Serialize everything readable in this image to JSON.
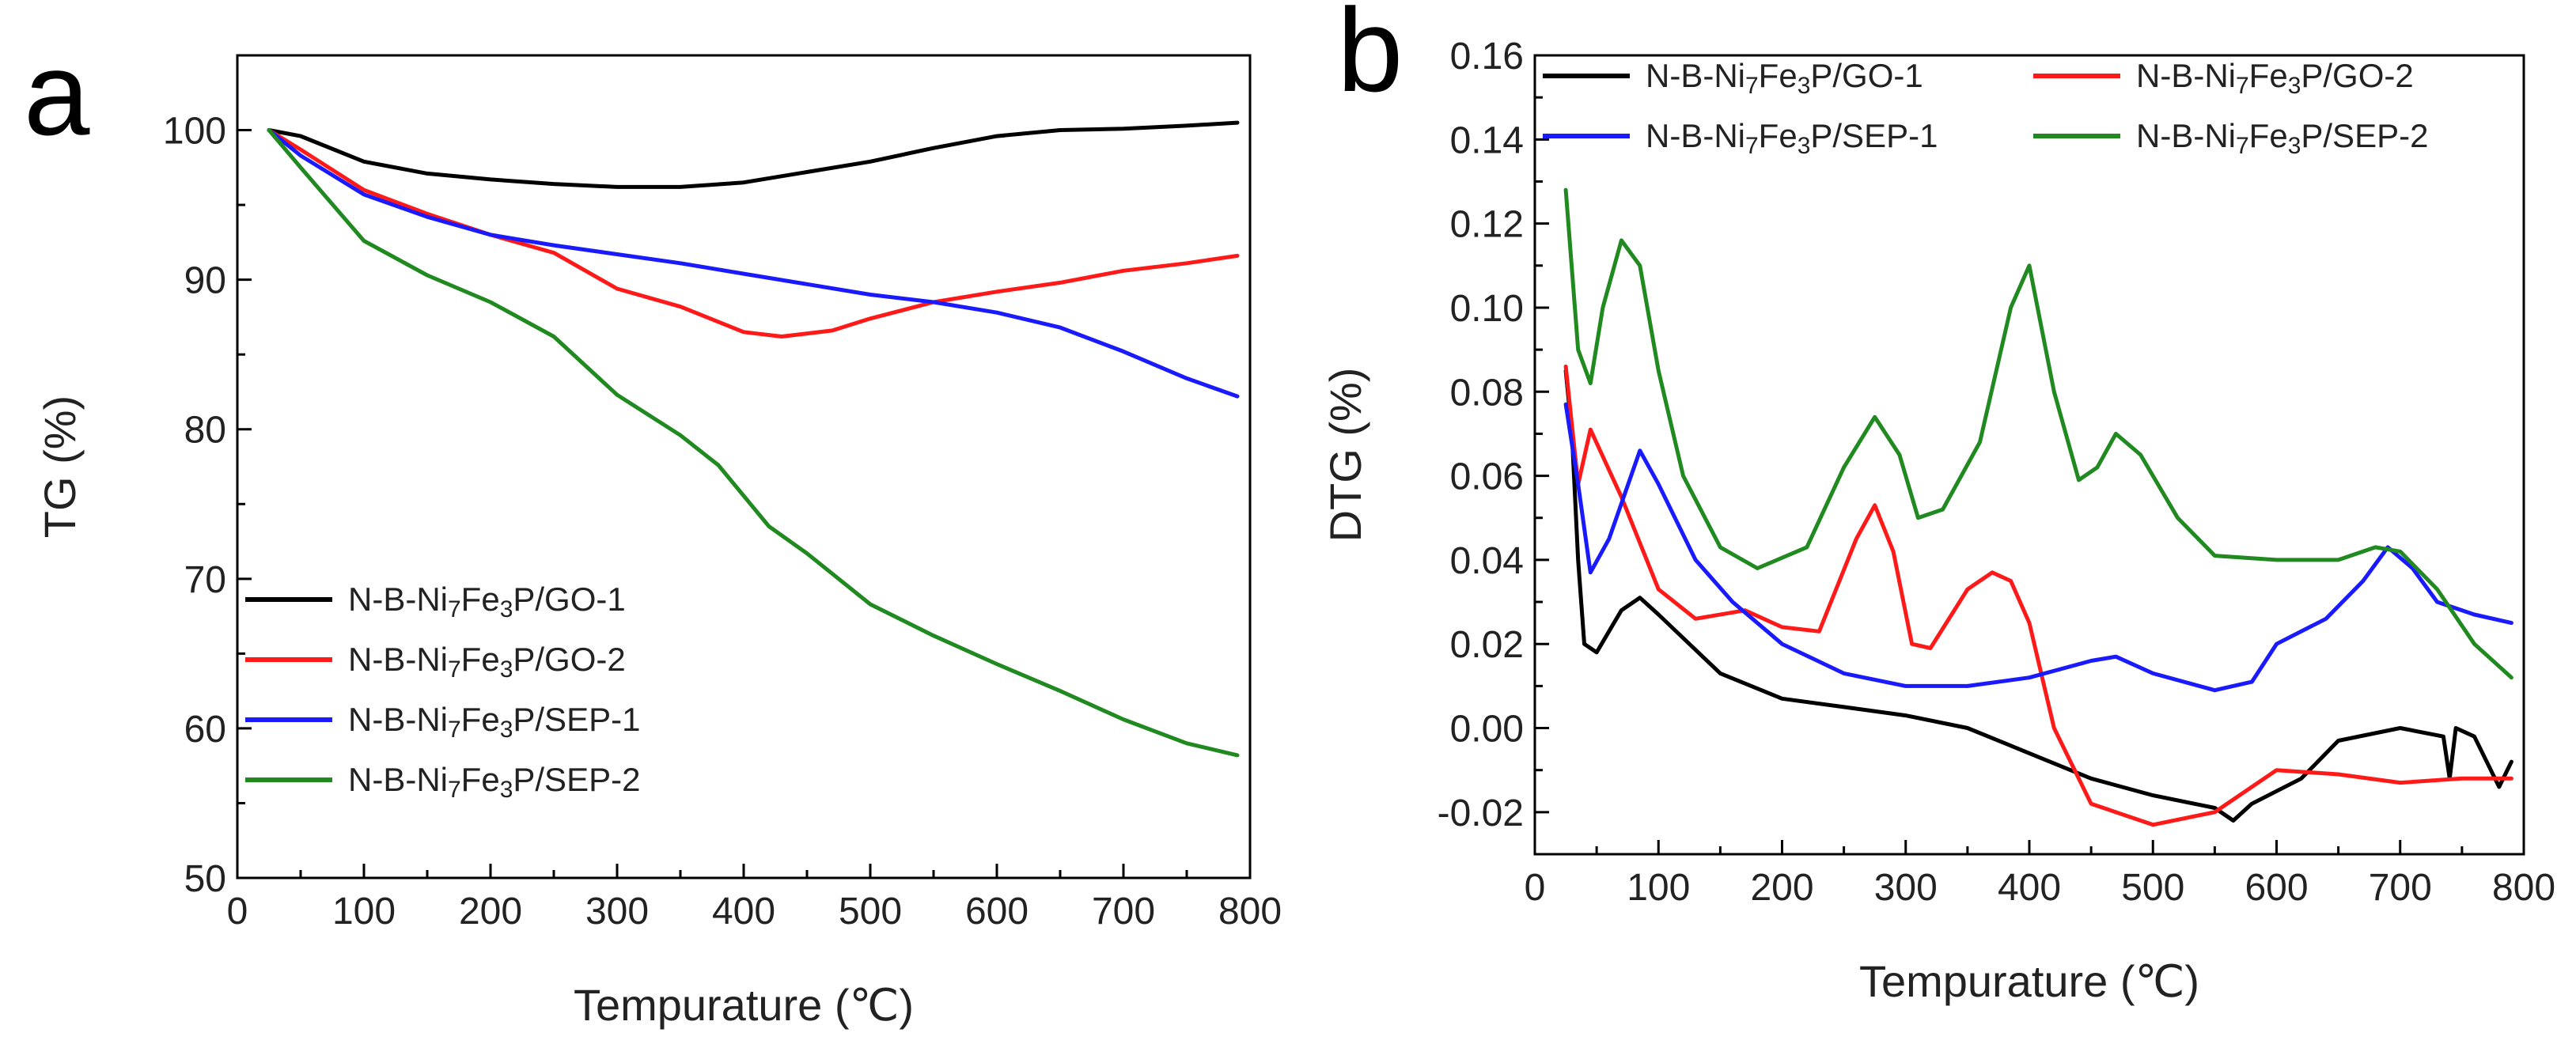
{
  "figure": {
    "panel_labels": [
      "a",
      "b"
    ]
  },
  "colors": {
    "GO-1": "#000000",
    "GO-2": "#ff1a1a",
    "SEP-1": "#1a1aff",
    "SEP-2": "#208a20"
  },
  "chart_data": [
    {
      "id": "a",
      "type": "line",
      "title": "",
      "xlabel": "Tempurature (℃)",
      "ylabel": "TG (%)",
      "xlim": [
        0,
        800
      ],
      "ylim": [
        50,
        105
      ],
      "xticks": [
        0,
        100,
        200,
        300,
        400,
        500,
        600,
        700,
        800
      ],
      "yticks": [
        50,
        60,
        70,
        80,
        90,
        100
      ],
      "legend": "bottom-left",
      "series": [
        {
          "key": "GO-1",
          "label_parts": [
            "N-B-Ni",
            "7",
            "Fe",
            "3",
            "P/GO-1"
          ],
          "color": "#000000",
          "points": [
            [
              25,
              100
            ],
            [
              50,
              99.6
            ],
            [
              100,
              97.9
            ],
            [
              150,
              97.1
            ],
            [
              200,
              96.7
            ],
            [
              250,
              96.4
            ],
            [
              300,
              96.2
            ],
            [
              350,
              96.2
            ],
            [
              400,
              96.5
            ],
            [
              450,
              97.2
            ],
            [
              500,
              97.9
            ],
            [
              550,
              98.8
            ],
            [
              600,
              99.6
            ],
            [
              650,
              100.0
            ],
            [
              700,
              100.1
            ],
            [
              750,
              100.3
            ],
            [
              790,
              100.5
            ]
          ]
        },
        {
          "key": "GO-2",
          "label_parts": [
            "N-B-Ni",
            "7",
            "Fe",
            "3",
            "P/GO-2"
          ],
          "color": "#ff1a1a",
          "points": [
            [
              25,
              100
            ],
            [
              50,
              98.7
            ],
            [
              100,
              96
            ],
            [
              150,
              94.4
            ],
            [
              200,
              93
            ],
            [
              250,
              91.8
            ],
            [
              300,
              89.4
            ],
            [
              350,
              88.2
            ],
            [
              400,
              86.5
            ],
            [
              430,
              86.2
            ],
            [
              470,
              86.6
            ],
            [
              500,
              87.4
            ],
            [
              550,
              88.5
            ],
            [
              600,
              89.2
            ],
            [
              650,
              89.8
            ],
            [
              700,
              90.6
            ],
            [
              750,
              91.1
            ],
            [
              790,
              91.6
            ]
          ]
        },
        {
          "key": "SEP-1",
          "label_parts": [
            "N-B-Ni",
            "7",
            "Fe",
            "3",
            "P/SEP-1"
          ],
          "color": "#1a1aff",
          "points": [
            [
              25,
              100
            ],
            [
              50,
              98.3
            ],
            [
              100,
              95.7
            ],
            [
              150,
              94.2
            ],
            [
              200,
              93
            ],
            [
              250,
              92.3
            ],
            [
              300,
              91.7
            ],
            [
              350,
              91.1
            ],
            [
              400,
              90.4
            ],
            [
              450,
              89.7
            ],
            [
              500,
              89
            ],
            [
              550,
              88.5
            ],
            [
              600,
              87.8
            ],
            [
              650,
              86.8
            ],
            [
              700,
              85.2
            ],
            [
              750,
              83.4
            ],
            [
              790,
              82.2
            ]
          ]
        },
        {
          "key": "SEP-2",
          "label_parts": [
            "N-B-Ni",
            "7",
            "Fe",
            "3",
            "P/SEP-2"
          ],
          "color": "#208a20",
          "points": [
            [
              25,
              100
            ],
            [
              50,
              97.5
            ],
            [
              100,
              92.6
            ],
            [
              150,
              90.3
            ],
            [
              200,
              88.5
            ],
            [
              250,
              86.2
            ],
            [
              300,
              82.3
            ],
            [
              350,
              79.6
            ],
            [
              380,
              77.6
            ],
            [
              420,
              73.5
            ],
            [
              450,
              71.7
            ],
            [
              500,
              68.3
            ],
            [
              550,
              66.2
            ],
            [
              600,
              64.3
            ],
            [
              650,
              62.5
            ],
            [
              700,
              60.6
            ],
            [
              750,
              59
            ],
            [
              790,
              58.2
            ]
          ]
        }
      ]
    },
    {
      "id": "b",
      "type": "line",
      "title": "",
      "xlabel": "Tempurature (℃)",
      "ylabel": "DTG (%)",
      "xlim": [
        0,
        800
      ],
      "ylim": [
        -0.03,
        0.16
      ],
      "xticks": [
        0,
        100,
        200,
        300,
        400,
        500,
        600,
        700,
        800
      ],
      "yticks": [
        -0.02,
        0.0,
        0.02,
        0.04,
        0.06,
        0.08,
        0.1,
        0.12,
        0.14,
        0.16
      ],
      "ytick_labels": [
        "-0.02",
        "0.00",
        "0.02",
        "0.04",
        "0.06",
        "0.08",
        "0.10",
        "0.12",
        "0.14",
        "0.16"
      ],
      "legend": "top",
      "series": [
        {
          "key": "GO-1",
          "label_parts": [
            "N-B-Ni",
            "7",
            "Fe",
            "3",
            "P/GO-1"
          ],
          "color": "#000000",
          "points": [
            [
              25,
              0.085
            ],
            [
              30,
              0.07
            ],
            [
              35,
              0.04
            ],
            [
              40,
              0.02
            ],
            [
              50,
              0.018
            ],
            [
              70,
              0.028
            ],
            [
              85,
              0.031
            ],
            [
              100,
              0.027
            ],
            [
              150,
              0.013
            ],
            [
              200,
              0.007
            ],
            [
              250,
              0.005
            ],
            [
              300,
              0.003
            ],
            [
              350,
              0
            ],
            [
              400,
              -0.006
            ],
            [
              450,
              -0.012
            ],
            [
              500,
              -0.016
            ],
            [
              550,
              -0.019
            ],
            [
              565,
              -0.022
            ],
            [
              580,
              -0.018
            ],
            [
              620,
              -0.012
            ],
            [
              650,
              -0.003
            ],
            [
              700,
              0
            ],
            [
              735,
              -0.002
            ],
            [
              740,
              -0.012
            ],
            [
              745,
              0
            ],
            [
              760,
              -0.002
            ],
            [
              780,
              -0.014
            ],
            [
              790,
              -0.008
            ]
          ]
        },
        {
          "key": "GO-2",
          "label_parts": [
            "N-B-Ni",
            "7",
            "Fe",
            "3",
            "P/GO-2"
          ],
          "color": "#ff1a1a",
          "points": [
            [
              25,
              0.086
            ],
            [
              35,
              0.058
            ],
            [
              45,
              0.071
            ],
            [
              70,
              0.055
            ],
            [
              100,
              0.033
            ],
            [
              130,
              0.026
            ],
            [
              170,
              0.028
            ],
            [
              200,
              0.024
            ],
            [
              230,
              0.023
            ],
            [
              260,
              0.045
            ],
            [
              275,
              0.053
            ],
            [
              290,
              0.042
            ],
            [
              305,
              0.02
            ],
            [
              320,
              0.019
            ],
            [
              350,
              0.033
            ],
            [
              370,
              0.037
            ],
            [
              385,
              0.035
            ],
            [
              400,
              0.025
            ],
            [
              420,
              0
            ],
            [
              450,
              -0.018
            ],
            [
              500,
              -0.023
            ],
            [
              550,
              -0.02
            ],
            [
              600,
              -0.01
            ],
            [
              650,
              -0.011
            ],
            [
              700,
              -0.013
            ],
            [
              750,
              -0.012
            ],
            [
              790,
              -0.012
            ]
          ]
        },
        {
          "key": "SEP-1",
          "label_parts": [
            "N-B-Ni",
            "7",
            "Fe",
            "3",
            "P/SEP-1"
          ],
          "color": "#1a1aff",
          "points": [
            [
              25,
              0.077
            ],
            [
              35,
              0.058
            ],
            [
              45,
              0.037
            ],
            [
              60,
              0.045
            ],
            [
              85,
              0.066
            ],
            [
              100,
              0.058
            ],
            [
              130,
              0.04
            ],
            [
              160,
              0.03
            ],
            [
              200,
              0.02
            ],
            [
              250,
              0.013
            ],
            [
              300,
              0.01
            ],
            [
              350,
              0.01
            ],
            [
              400,
              0.012
            ],
            [
              450,
              0.016
            ],
            [
              470,
              0.017
            ],
            [
              500,
              0.013
            ],
            [
              550,
              0.009
            ],
            [
              580,
              0.011
            ],
            [
              600,
              0.02
            ],
            [
              640,
              0.026
            ],
            [
              670,
              0.035
            ],
            [
              690,
              0.043
            ],
            [
              710,
              0.038
            ],
            [
              730,
              0.03
            ],
            [
              760,
              0.027
            ],
            [
              790,
              0.025
            ]
          ]
        },
        {
          "key": "SEP-2",
          "label_parts": [
            "N-B-Ni",
            "7",
            "Fe",
            "3",
            "P/SEP-2"
          ],
          "color": "#208a20",
          "points": [
            [
              25,
              0.128
            ],
            [
              35,
              0.09
            ],
            [
              45,
              0.082
            ],
            [
              55,
              0.1
            ],
            [
              70,
              0.116
            ],
            [
              85,
              0.11
            ],
            [
              100,
              0.085
            ],
            [
              120,
              0.06
            ],
            [
              150,
              0.043
            ],
            [
              180,
              0.038
            ],
            [
              220,
              0.043
            ],
            [
              250,
              0.062
            ],
            [
              275,
              0.074
            ],
            [
              295,
              0.065
            ],
            [
              310,
              0.05
            ],
            [
              330,
              0.052
            ],
            [
              360,
              0.068
            ],
            [
              385,
              0.1
            ],
            [
              400,
              0.11
            ],
            [
              420,
              0.08
            ],
            [
              440,
              0.059
            ],
            [
              455,
              0.062
            ],
            [
              470,
              0.07
            ],
            [
              490,
              0.065
            ],
            [
              520,
              0.05
            ],
            [
              550,
              0.041
            ],
            [
              600,
              0.04
            ],
            [
              650,
              0.04
            ],
            [
              680,
              0.043
            ],
            [
              700,
              0.042
            ],
            [
              730,
              0.033
            ],
            [
              760,
              0.02
            ],
            [
              790,
              0.012
            ]
          ]
        }
      ]
    }
  ]
}
